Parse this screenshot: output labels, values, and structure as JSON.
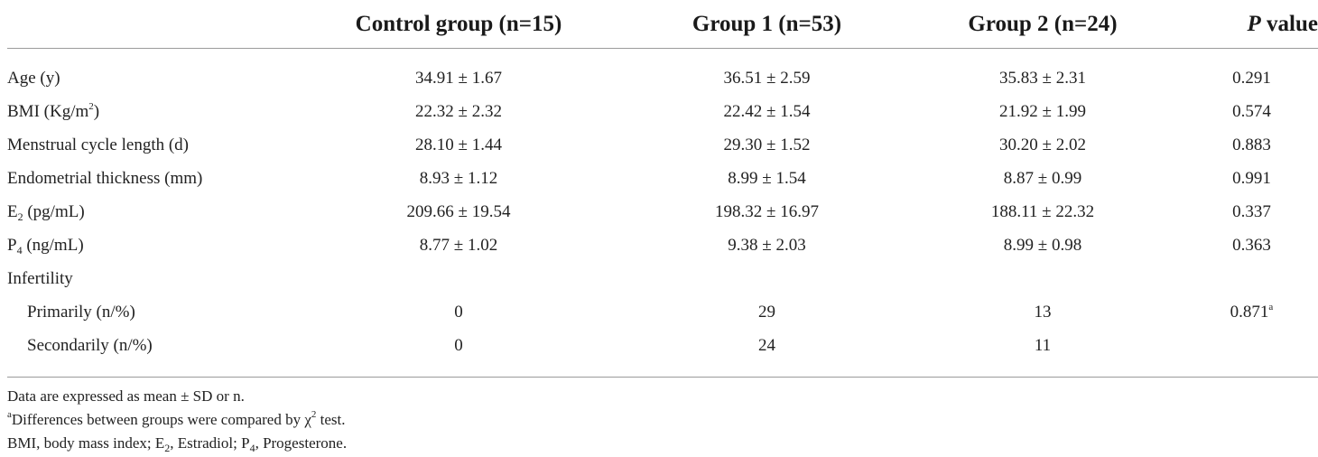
{
  "header": {
    "col0": "",
    "control": "Control group (n=15)",
    "group1": "Group 1 (n=53)",
    "group2": "Group 2 (n=24)",
    "pvalue_italic": "P",
    "pvalue_rest": " value"
  },
  "rows": {
    "age": {
      "label": "Age (y)",
      "control": "34.91 ± 1.67",
      "group1": "36.51 ± 2.59",
      "group2": "35.83 ± 2.31",
      "p": "0.291"
    },
    "bmi": {
      "label_pre": "BMI (Kg/m",
      "label_sup": "2",
      "label_post": ")",
      "control": "22.32 ± 2.32",
      "group1": "22.42 ± 1.54",
      "group2": "21.92 ± 1.99",
      "p": "0.574"
    },
    "cycle": {
      "label": "Menstrual cycle length (d)",
      "control": "28.10 ± 1.44",
      "group1": "29.30 ± 1.52",
      "group2": "30.20 ± 2.02",
      "p": "0.883"
    },
    "endo": {
      "label": "Endometrial thickness (mm)",
      "control": "8.93 ± 1.12",
      "group1": "8.99 ± 1.54",
      "group2": "8.87 ± 0.99",
      "p": "0.991"
    },
    "e2": {
      "label_pre": "E",
      "label_sub": "2",
      "label_post": " (pg/mL)",
      "control": "209.66 ± 19.54",
      "group1": "198.32 ± 16.97",
      "group2": "188.11 ± 22.32",
      "p": "0.337"
    },
    "p4": {
      "label_pre": "P",
      "label_sub": "4",
      "label_post": " (ng/mL)",
      "control": "8.77 ± 1.02",
      "group1": "9.38 ± 2.03",
      "group2": "8.99 ± 0.98",
      "p": "0.363"
    },
    "infertility": {
      "label": "Infertility"
    },
    "primarily": {
      "label": "Primarily (n/%)",
      "control": "0",
      "group1": "29",
      "group2": "13",
      "p": "0.871",
      "p_sup": "a"
    },
    "secondarily": {
      "label": "Secondarily (n/%)",
      "control": "0",
      "group1": "24",
      "group2": "11",
      "p": ""
    }
  },
  "notes": {
    "line1": "Data are expressed as mean ± SD or n.",
    "line2_sup": "a",
    "line2_pre": "Differences between groups were compared by ",
    "line2_chi": "χ",
    "line2_chi_sup": "2",
    "line2_post": " test.",
    "line3_a": "BMI, body mass index; E",
    "line3_sub1": "2",
    "line3_b": ", Estradiol; P",
    "line3_sub2": "4",
    "line3_c": ", Progesterone."
  }
}
